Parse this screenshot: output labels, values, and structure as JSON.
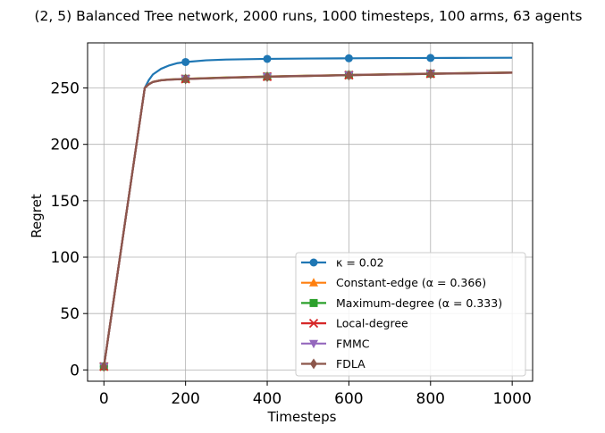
{
  "chart_data": {
    "type": "line",
    "title": "(2, 5) Balanced Tree network, 2000 runs, 1000 timesteps, 100 arms, 63 agents",
    "xlabel": "Timesteps",
    "ylabel": "Regret",
    "xlim": [
      -40,
      1050
    ],
    "ylim": [
      -10,
      290
    ],
    "xticks": [
      0,
      200,
      400,
      600,
      800,
      1000
    ],
    "yticks": [
      0,
      50,
      100,
      150,
      200,
      250
    ],
    "grid": true,
    "legend_position": "lower-right",
    "marker_x": [
      0,
      200,
      400,
      600,
      800
    ],
    "series": [
      {
        "name": "κ = 0.02",
        "color": "#1f77b4",
        "marker": "circle",
        "x": [
          0,
          100,
          110,
          120,
          140,
          160,
          180,
          200,
          250,
          300,
          400,
          500,
          600,
          700,
          800,
          900,
          1000
        ],
        "y": [
          3,
          250,
          257,
          262,
          267,
          270,
          272,
          273,
          274.5,
          275.2,
          275.8,
          276.1,
          276.3,
          276.5,
          276.6,
          276.7,
          276.8
        ]
      },
      {
        "name": "Constant-edge (α = 0.366)",
        "color": "#ff7f0e",
        "marker": "triangle-up",
        "x": [
          0,
          100,
          110,
          120,
          140,
          160,
          200,
          300,
          400,
          500,
          600,
          700,
          800,
          900,
          1000
        ],
        "y": [
          3,
          250,
          253.5,
          255.5,
          257,
          257.6,
          258.2,
          259.3,
          260.2,
          260.9,
          261.6,
          262.2,
          262.8,
          263.3,
          263.8
        ]
      },
      {
        "name": "Maximum-degree (α = 0.333)",
        "color": "#2ca02c",
        "marker": "square",
        "x": [
          0,
          100,
          110,
          120,
          140,
          160,
          200,
          300,
          400,
          500,
          600,
          700,
          800,
          900,
          1000
        ],
        "y": [
          3,
          250,
          253.4,
          255.4,
          256.9,
          257.5,
          258.1,
          259.2,
          260.1,
          260.8,
          261.5,
          262.1,
          262.7,
          263.2,
          263.7
        ]
      },
      {
        "name": "Local-degree",
        "color": "#d62728",
        "marker": "x",
        "x": [
          0,
          100,
          110,
          120,
          140,
          160,
          200,
          300,
          400,
          500,
          600,
          700,
          800,
          900,
          1000
        ],
        "y": [
          3,
          250,
          253.3,
          255.3,
          256.8,
          257.4,
          258,
          259.1,
          260,
          260.7,
          261.4,
          262,
          262.6,
          263.1,
          263.6
        ]
      },
      {
        "name": "FMMC",
        "color": "#9467bd",
        "marker": "triangle-down",
        "x": [
          0,
          100,
          110,
          120,
          140,
          160,
          200,
          300,
          400,
          500,
          600,
          700,
          800,
          900,
          1000
        ],
        "y": [
          3,
          250,
          253.3,
          255.3,
          256.8,
          257.4,
          258,
          259.1,
          260,
          260.7,
          261.4,
          262,
          262.6,
          263.1,
          263.6
        ]
      },
      {
        "name": "FDLA",
        "color": "#8c564b",
        "marker": "diamond",
        "x": [
          0,
          100,
          110,
          120,
          140,
          160,
          200,
          300,
          400,
          500,
          600,
          700,
          800,
          900,
          1000
        ],
        "y": [
          3,
          250,
          253.2,
          255.2,
          256.7,
          257.3,
          257.9,
          259,
          259.9,
          260.6,
          261.3,
          261.9,
          262.5,
          263,
          263.5
        ]
      }
    ]
  }
}
